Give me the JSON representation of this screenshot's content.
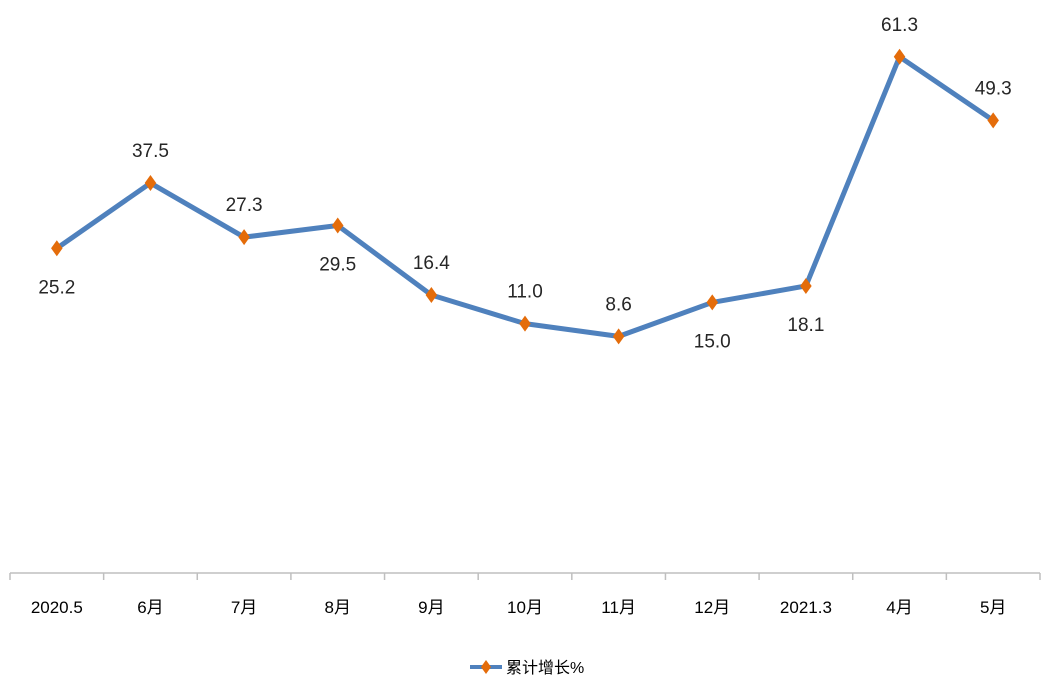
{
  "chart_data": {
    "type": "line",
    "title": "",
    "xlabel": "",
    "ylabel": "",
    "categories": [
      "2020.5",
      "6月",
      "7月",
      "8月",
      "9月",
      "10月",
      "11月",
      "12月",
      "2021.3",
      "4月",
      "5月"
    ],
    "series": [
      {
        "name": "累计增长%",
        "values": [
          25.2,
          37.5,
          27.3,
          29.5,
          16.4,
          11.0,
          8.6,
          15.0,
          18.1,
          61.3,
          49.3
        ],
        "labels": [
          "25.2",
          "37.5",
          "27.3",
          "29.5",
          "16.4",
          "11.0",
          "8.6",
          "15.0",
          "18.1",
          "61.3",
          "49.3"
        ],
        "line_color": "#4f81bd",
        "marker_color": "#e46c0a",
        "marker": "diamond"
      }
    ],
    "ylim": [
      -36,
      72
    ],
    "grid": false,
    "legend": "bottom-center"
  }
}
